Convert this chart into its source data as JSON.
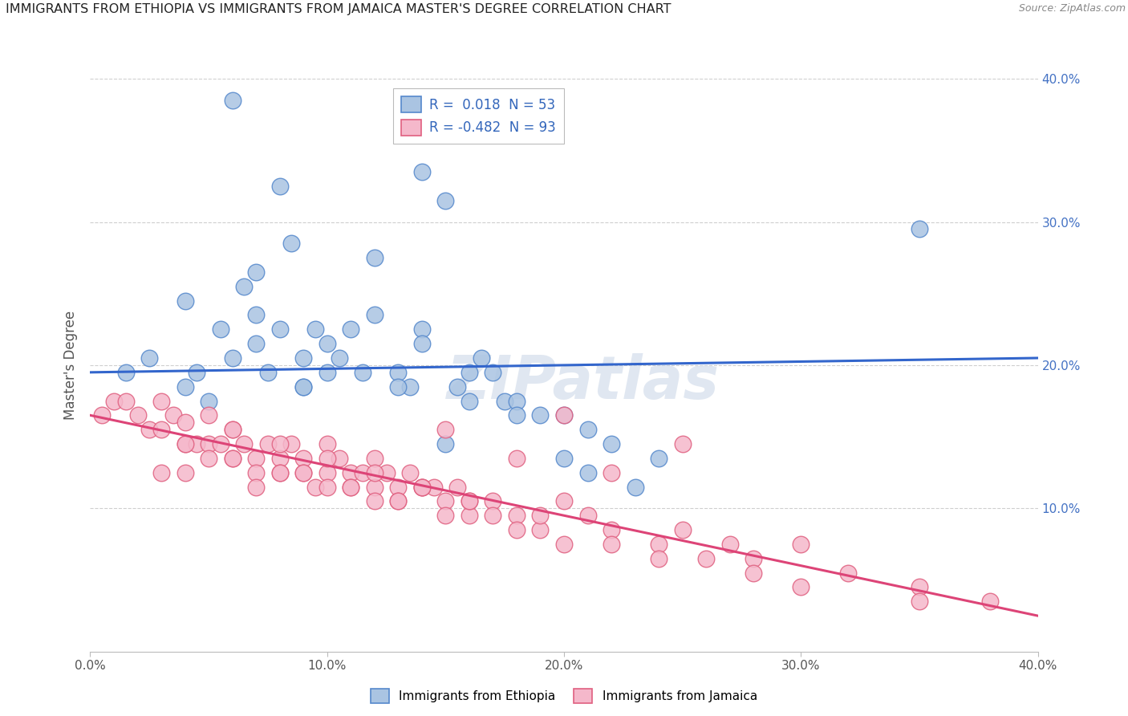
{
  "title": "IMMIGRANTS FROM ETHIOPIA VS IMMIGRANTS FROM JAMAICA MASTER'S DEGREE CORRELATION CHART",
  "source": "Source: ZipAtlas.com",
  "ylabel": "Master's Degree",
  "xlim": [
    0.0,
    0.4
  ],
  "ylim": [
    0.0,
    0.4
  ],
  "xticks": [
    0.0,
    0.1,
    0.2,
    0.3,
    0.4
  ],
  "yticks": [
    0.0,
    0.1,
    0.2,
    0.3,
    0.4
  ],
  "xticklabels": [
    "0.0%",
    "10.0%",
    "20.0%",
    "30.0%",
    "40.0%"
  ],
  "yticklabels_right": [
    "",
    "10.0%",
    "20.0%",
    "30.0%",
    "40.0%"
  ],
  "ethiopia_color": "#aac4e2",
  "jamaica_color": "#f5b8cb",
  "ethiopia_edge": "#5588cc",
  "jamaica_edge": "#e06080",
  "trend_ethiopia_color": "#3366cc",
  "trend_jamaica_color": "#dd4477",
  "watermark_color": "#ccd8e8",
  "grid_color": "#bbbbbb",
  "bg_color": "#ffffff",
  "ethiopia_x": [
    0.015,
    0.025,
    0.04,
    0.045,
    0.05,
    0.055,
    0.06,
    0.065,
    0.07,
    0.07,
    0.075,
    0.08,
    0.085,
    0.09,
    0.09,
    0.095,
    0.1,
    0.1,
    0.105,
    0.11,
    0.115,
    0.12,
    0.13,
    0.135,
    0.14,
    0.14,
    0.15,
    0.155,
    0.16,
    0.165,
    0.17,
    0.175,
    0.18,
    0.19,
    0.2,
    0.21,
    0.22,
    0.23,
    0.24,
    0.15,
    0.14,
    0.06,
    0.08,
    0.35,
    0.04,
    0.12,
    0.2,
    0.16,
    0.18,
    0.21,
    0.13,
    0.07,
    0.09
  ],
  "ethiopia_y": [
    0.195,
    0.205,
    0.185,
    0.195,
    0.175,
    0.225,
    0.205,
    0.255,
    0.265,
    0.235,
    0.195,
    0.225,
    0.285,
    0.205,
    0.185,
    0.225,
    0.215,
    0.195,
    0.205,
    0.225,
    0.195,
    0.235,
    0.195,
    0.185,
    0.225,
    0.215,
    0.145,
    0.185,
    0.195,
    0.205,
    0.195,
    0.175,
    0.175,
    0.165,
    0.165,
    0.155,
    0.145,
    0.115,
    0.135,
    0.315,
    0.335,
    0.385,
    0.325,
    0.295,
    0.245,
    0.275,
    0.135,
    0.175,
    0.165,
    0.125,
    0.185,
    0.215,
    0.185
  ],
  "jamaica_x": [
    0.005,
    0.01,
    0.015,
    0.02,
    0.025,
    0.03,
    0.03,
    0.035,
    0.04,
    0.04,
    0.045,
    0.05,
    0.05,
    0.055,
    0.06,
    0.06,
    0.065,
    0.07,
    0.07,
    0.075,
    0.08,
    0.08,
    0.085,
    0.09,
    0.09,
    0.095,
    0.1,
    0.1,
    0.105,
    0.11,
    0.11,
    0.115,
    0.12,
    0.12,
    0.125,
    0.13,
    0.13,
    0.135,
    0.14,
    0.145,
    0.15,
    0.155,
    0.16,
    0.17,
    0.18,
    0.19,
    0.2,
    0.21,
    0.22,
    0.24,
    0.25,
    0.27,
    0.28,
    0.3,
    0.32,
    0.35,
    0.38,
    0.03,
    0.04,
    0.05,
    0.06,
    0.07,
    0.08,
    0.09,
    0.1,
    0.11,
    0.12,
    0.13,
    0.14,
    0.15,
    0.16,
    0.17,
    0.18,
    0.19,
    0.2,
    0.22,
    0.24,
    0.26,
    0.28,
    0.3,
    0.2,
    0.15,
    0.25,
    0.18,
    0.22,
    0.35,
    0.12,
    0.08,
    0.06,
    0.04,
    0.1,
    0.14,
    0.16
  ],
  "jamaica_y": [
    0.165,
    0.175,
    0.175,
    0.165,
    0.155,
    0.175,
    0.155,
    0.165,
    0.16,
    0.145,
    0.145,
    0.165,
    0.145,
    0.145,
    0.155,
    0.135,
    0.145,
    0.135,
    0.125,
    0.145,
    0.135,
    0.125,
    0.145,
    0.135,
    0.125,
    0.115,
    0.145,
    0.125,
    0.135,
    0.125,
    0.115,
    0.125,
    0.135,
    0.115,
    0.125,
    0.115,
    0.105,
    0.125,
    0.115,
    0.115,
    0.105,
    0.115,
    0.095,
    0.105,
    0.095,
    0.085,
    0.105,
    0.095,
    0.085,
    0.075,
    0.085,
    0.075,
    0.065,
    0.075,
    0.055,
    0.045,
    0.035,
    0.125,
    0.145,
    0.135,
    0.155,
    0.115,
    0.145,
    0.125,
    0.135,
    0.115,
    0.125,
    0.105,
    0.115,
    0.095,
    0.105,
    0.095,
    0.085,
    0.095,
    0.075,
    0.075,
    0.065,
    0.065,
    0.055,
    0.045,
    0.165,
    0.155,
    0.145,
    0.135,
    0.125,
    0.035,
    0.105,
    0.125,
    0.135,
    0.125,
    0.115,
    0.115,
    0.105
  ],
  "ethiopia_trend_x": [
    0.0,
    0.4
  ],
  "ethiopia_trend_y": [
    0.195,
    0.205
  ],
  "jamaica_trend_x": [
    0.0,
    0.4
  ],
  "jamaica_trend_y": [
    0.165,
    0.025
  ]
}
